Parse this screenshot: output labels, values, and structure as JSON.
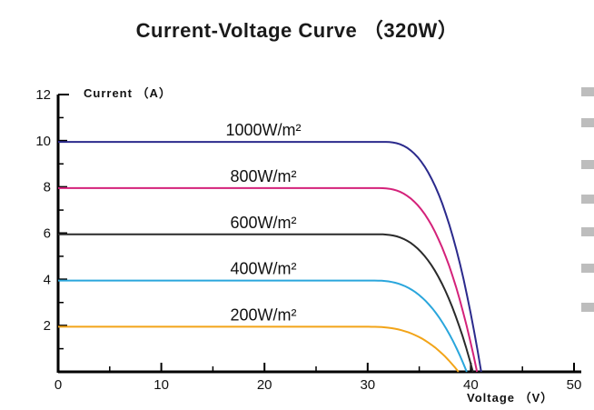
{
  "chart_data": {
    "type": "line",
    "title": "Current-Voltage Curve （320W）",
    "xlabel": "Voltage （V）",
    "ylabel": "Current （A）",
    "xlim": [
      0,
      50
    ],
    "ylim": [
      0,
      12
    ],
    "xticks": [
      "0",
      "10",
      "20",
      "30",
      "40",
      "50"
    ],
    "yticks": [
      "2",
      "4",
      "6",
      "8",
      "10",
      "12"
    ],
    "grid": false,
    "series": [
      {
        "name": "1000W/m²",
        "color": "#2b2a8c",
        "isc": 9.95,
        "voc": 41.0,
        "knee": 31.5
      },
      {
        "name": "800W/m²",
        "color": "#d4227a",
        "isc": 7.95,
        "voc": 40.6,
        "knee": 31.0
      },
      {
        "name": "600W/m²",
        "color": "#2a2a2a",
        "isc": 5.95,
        "voc": 40.2,
        "knee": 31.0
      },
      {
        "name": "400W/m²",
        "color": "#2aa6dc",
        "isc": 3.95,
        "voc": 39.6,
        "knee": 30.5
      },
      {
        "name": "200W/m²",
        "color": "#f2a418",
        "isc": 1.95,
        "voc": 38.8,
        "knee": 30.0
      }
    ]
  }
}
